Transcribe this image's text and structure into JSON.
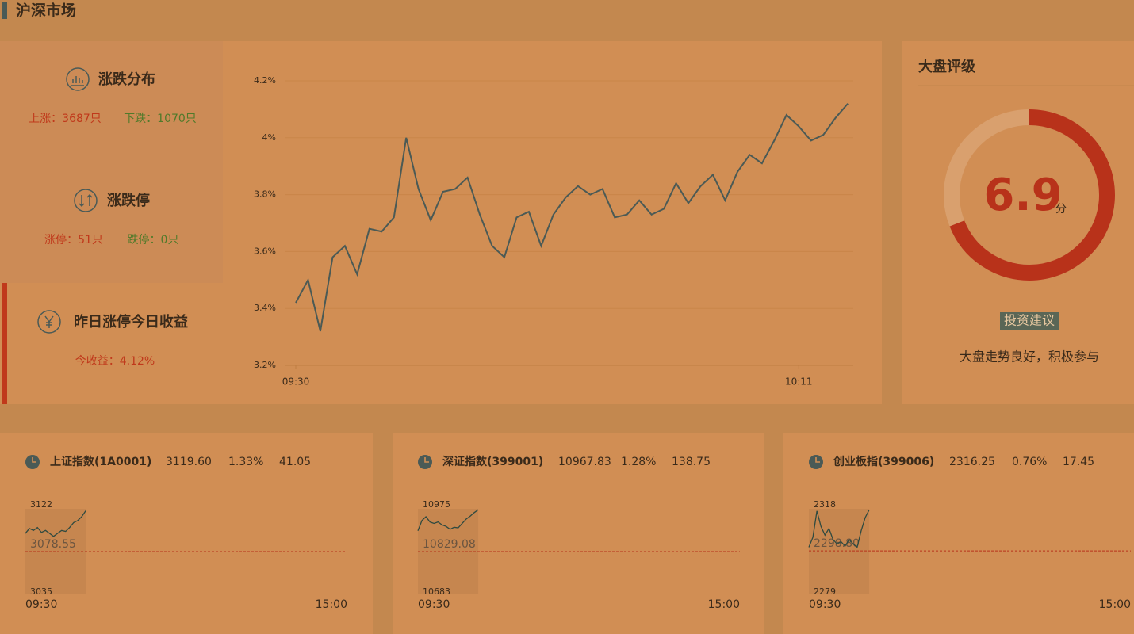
{
  "header": {
    "title": "沪深市场"
  },
  "summary": [
    {
      "title": "涨跌分布",
      "items": [
        "上涨：3687只",
        "下跌：1070只"
      ]
    },
    {
      "title": "涨跌停",
      "items": [
        "涨停：51只",
        "跌停：0只"
      ]
    },
    {
      "title": "昨日涨停今日收益",
      "items": [
        "今收益：4.12%"
      ]
    }
  ],
  "chart_data": [
    {
      "type": "line",
      "color": "#4b5a55",
      "categories": [
        "09:30",
        null,
        null,
        null,
        null,
        null,
        null,
        null,
        null,
        null,
        null,
        null,
        null,
        null,
        null,
        null,
        null,
        null,
        null,
        null,
        null,
        null,
        null,
        null,
        null,
        null,
        null,
        null,
        null,
        null,
        null,
        null,
        null,
        null,
        null,
        null,
        null,
        null,
        null,
        null,
        null,
        "10:11",
        null,
        null,
        null,
        null
      ],
      "values": [
        3.42,
        3.5,
        3.32,
        3.58,
        3.62,
        3.52,
        3.68,
        3.67,
        3.72,
        4.0,
        3.82,
        3.71,
        3.81,
        3.82,
        3.86,
        3.73,
        3.62,
        3.58,
        3.72,
        3.74,
        3.62,
        3.73,
        3.79,
        3.83,
        3.8,
        3.82,
        3.72,
        3.73,
        3.78,
        3.73,
        3.75,
        3.84,
        3.77,
        3.83,
        3.87,
        3.78,
        3.88,
        3.94,
        3.91,
        3.99,
        4.08,
        4.04,
        3.99,
        4.01,
        4.07,
        4.12
      ],
      "ylim": [
        3.2,
        4.2
      ],
      "yticks": [
        {
          "value": 3.2,
          "label": "3.2%"
        },
        {
          "value": 3.4,
          "label": "3.4%"
        },
        {
          "value": 3.6,
          "label": "3.6%"
        },
        {
          "value": 3.8,
          "label": "3.8%"
        },
        {
          "value": 4,
          "label": "4%"
        },
        {
          "value": 4.2,
          "label": "4.2%"
        }
      ],
      "grid": true
    },
    {
      "type": "gauge",
      "title": "大盘评级",
      "value": 6.9,
      "unit": "分",
      "lim": [
        0,
        10
      ],
      "color": "#b8321a",
      "track_color": "#d9a06e",
      "label": "投资建议",
      "note": "大盘走势良好，积极参与"
    },
    {
      "type": "line",
      "title": "上证指数(1A0001)",
      "info": [
        "3119.60",
        "1.33%",
        "41.05"
      ],
      "color": "#2f4a40",
      "x": [
        0,
        3,
        6,
        9,
        12,
        15,
        18,
        21,
        24,
        27,
        30,
        33,
        36,
        39,
        42,
        45
      ],
      "values": [
        3097,
        3102,
        3100,
        3103,
        3098,
        3100,
        3097,
        3094,
        3097,
        3100,
        3099,
        3103,
        3108,
        3110,
        3114,
        3120
      ],
      "xlim": [
        0,
        240
      ],
      "xticks": [
        {
          "value": 0,
          "label": "09:30"
        },
        {
          "value": 240,
          "label": "15:00"
        }
      ],
      "ylim": [
        3035,
        3122
      ],
      "yticks": [
        3035,
        3122
      ],
      "baseline": {
        "value": 3078.55,
        "label": "3078.55"
      }
    },
    {
      "type": "line",
      "title": "深证指数(399001)",
      "info": [
        "10967.83",
        "1.28%",
        "138.75"
      ],
      "color": "#2f4a40",
      "x": [
        0,
        3,
        6,
        9,
        12,
        15,
        18,
        21,
        24,
        27,
        30,
        33,
        36,
        39,
        42,
        45
      ],
      "values": [
        10900,
        10935,
        10948,
        10930,
        10925,
        10930,
        10920,
        10915,
        10905,
        10912,
        10910,
        10925,
        10940,
        10950,
        10962,
        10972
      ],
      "xlim": [
        0,
        240
      ],
      "xticks": [
        {
          "value": 0,
          "label": "09:30"
        },
        {
          "value": 240,
          "label": "15:00"
        }
      ],
      "ylim": [
        10683,
        10975
      ],
      "yticks": [
        10683,
        10975
      ],
      "baseline": {
        "value": 10829.08,
        "label": "10829.08"
      }
    },
    {
      "type": "line",
      "title": "创业板指(399006)",
      "info": [
        "2316.25",
        "0.76%",
        "17.45"
      ],
      "color": "#2f4a40",
      "x": [
        0,
        3,
        6,
        9,
        12,
        15,
        18,
        21,
        24,
        27,
        30,
        33,
        36,
        39,
        42,
        45
      ],
      "values": [
        2300.5,
        2305,
        2317,
        2310,
        2306,
        2309,
        2304,
        2302,
        2303,
        2301,
        2304,
        2302,
        2300.5,
        2308,
        2314,
        2317.6
      ],
      "xlim": [
        0,
        240
      ],
      "xticks": [
        {
          "value": 0,
          "label": "09:30"
        },
        {
          "value": 240,
          "label": "15:00"
        }
      ],
      "ylim": [
        2279,
        2318
      ],
      "yticks": [
        2279,
        2318
      ],
      "baseline": {
        "value": 2298.8,
        "label": "2298.80"
      }
    }
  ]
}
